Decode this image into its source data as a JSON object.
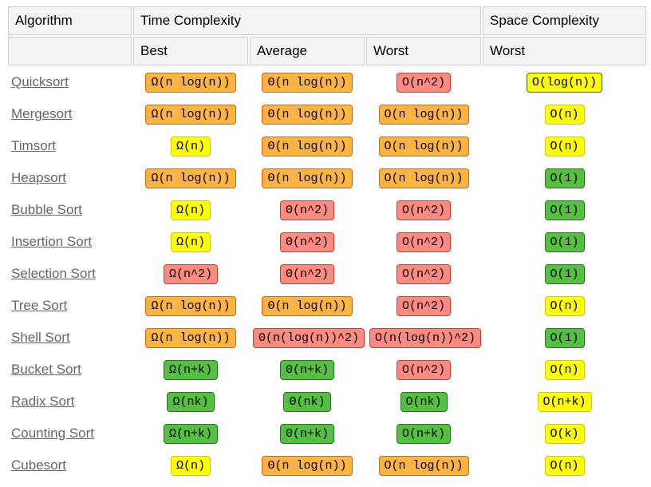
{
  "headers": {
    "algorithm": "Algorithm",
    "time": "Time Complexity",
    "space": "Space Complexity",
    "best": "Best",
    "average": "Average",
    "worst": "Worst",
    "space_worst": "Worst",
    "blank": ""
  },
  "colors": {
    "green": {
      "bg": "#54c040",
      "border": "#1f7a1f"
    },
    "yellow": {
      "bg": "#ffff00",
      "border": "#d4c400"
    },
    "orange": {
      "bg": "#ffb340",
      "border": "#e06000"
    },
    "red": {
      "bg": "#ff8a80",
      "border": "#e03030"
    }
  },
  "typography": {
    "header_fontsize": 17,
    "link_fontsize": 17,
    "pill_fontsize": 15,
    "pill_font": "Courier New, monospace"
  },
  "rows": [
    {
      "name": "Quicksort",
      "best": {
        "text": "Ω(n log(n))",
        "color": "orange"
      },
      "avg": {
        "text": "Θ(n log(n))",
        "color": "orange"
      },
      "worst": {
        "text": "O(n^2)",
        "color": "red"
      },
      "space": {
        "text": "O(log(n))",
        "color": "yellow",
        "border": "green"
      }
    },
    {
      "name": "Mergesort",
      "best": {
        "text": "Ω(n log(n))",
        "color": "orange"
      },
      "avg": {
        "text": "Θ(n log(n))",
        "color": "orange"
      },
      "worst": {
        "text": "O(n log(n))",
        "color": "orange"
      },
      "space": {
        "text": "O(n)",
        "color": "yellow"
      }
    },
    {
      "name": "Timsort",
      "best": {
        "text": "Ω(n)",
        "color": "yellow"
      },
      "avg": {
        "text": "Θ(n log(n))",
        "color": "orange"
      },
      "worst": {
        "text": "O(n log(n))",
        "color": "orange"
      },
      "space": {
        "text": "O(n)",
        "color": "yellow"
      }
    },
    {
      "name": "Heapsort",
      "best": {
        "text": "Ω(n log(n))",
        "color": "orange"
      },
      "avg": {
        "text": "Θ(n log(n))",
        "color": "orange"
      },
      "worst": {
        "text": "O(n log(n))",
        "color": "orange"
      },
      "space": {
        "text": "O(1)",
        "color": "green"
      }
    },
    {
      "name": "Bubble Sort",
      "best": {
        "text": "Ω(n)",
        "color": "yellow"
      },
      "avg": {
        "text": "Θ(n^2)",
        "color": "red"
      },
      "worst": {
        "text": "O(n^2)",
        "color": "red"
      },
      "space": {
        "text": "O(1)",
        "color": "green"
      }
    },
    {
      "name": "Insertion Sort",
      "best": {
        "text": "Ω(n)",
        "color": "yellow"
      },
      "avg": {
        "text": "Θ(n^2)",
        "color": "red"
      },
      "worst": {
        "text": "O(n^2)",
        "color": "red"
      },
      "space": {
        "text": "O(1)",
        "color": "green"
      }
    },
    {
      "name": "Selection Sort",
      "best": {
        "text": "Ω(n^2)",
        "color": "red"
      },
      "avg": {
        "text": "Θ(n^2)",
        "color": "red"
      },
      "worst": {
        "text": "O(n^2)",
        "color": "red"
      },
      "space": {
        "text": "O(1)",
        "color": "green"
      }
    },
    {
      "name": "Tree Sort",
      "best": {
        "text": "Ω(n log(n))",
        "color": "orange"
      },
      "avg": {
        "text": "Θ(n log(n))",
        "color": "orange"
      },
      "worst": {
        "text": "O(n^2)",
        "color": "red"
      },
      "space": {
        "text": "O(n)",
        "color": "yellow"
      }
    },
    {
      "name": "Shell Sort",
      "best": {
        "text": "Ω(n log(n))",
        "color": "orange"
      },
      "avg": {
        "text": "Θ(n(log(n))^2)",
        "color": "red"
      },
      "worst": {
        "text": "O(n(log(n))^2)",
        "color": "red"
      },
      "space": {
        "text": "O(1)",
        "color": "green"
      }
    },
    {
      "name": "Bucket Sort",
      "best": {
        "text": "Ω(n+k)",
        "color": "green"
      },
      "avg": {
        "text": "Θ(n+k)",
        "color": "green"
      },
      "worst": {
        "text": "O(n^2)",
        "color": "red"
      },
      "space": {
        "text": "O(n)",
        "color": "yellow"
      }
    },
    {
      "name": "Radix Sort",
      "best": {
        "text": "Ω(nk)",
        "color": "green"
      },
      "avg": {
        "text": "Θ(nk)",
        "color": "green"
      },
      "worst": {
        "text": "O(nk)",
        "color": "green"
      },
      "space": {
        "text": "O(n+k)",
        "color": "yellow"
      }
    },
    {
      "name": "Counting Sort",
      "best": {
        "text": "Ω(n+k)",
        "color": "green"
      },
      "avg": {
        "text": "Θ(n+k)",
        "color": "green"
      },
      "worst": {
        "text": "O(n+k)",
        "color": "green"
      },
      "space": {
        "text": "O(k)",
        "color": "yellow"
      }
    },
    {
      "name": "Cubesort",
      "best": {
        "text": "Ω(n)",
        "color": "yellow"
      },
      "avg": {
        "text": "Θ(n log(n))",
        "color": "orange"
      },
      "worst": {
        "text": "O(n log(n))",
        "color": "orange"
      },
      "space": {
        "text": "O(n)",
        "color": "yellow"
      }
    }
  ]
}
